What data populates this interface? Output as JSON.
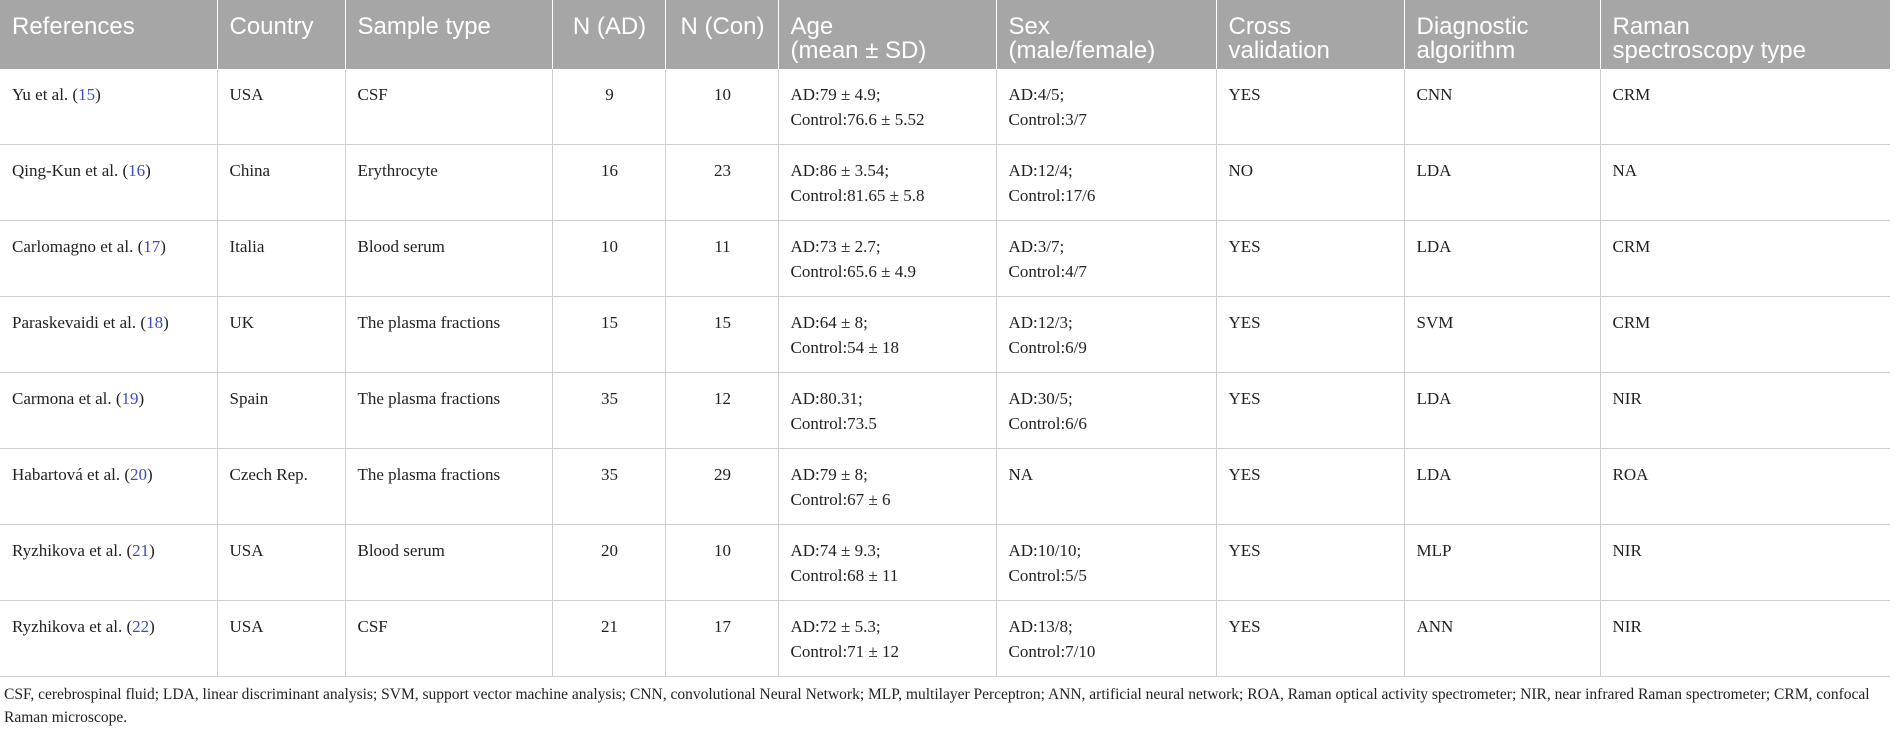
{
  "table": {
    "headers": [
      [
        "References"
      ],
      [
        "Country"
      ],
      [
        "Sample type"
      ],
      [
        "N (AD)"
      ],
      [
        "N (Con)"
      ],
      [
        "Age",
        "(mean ± SD)"
      ],
      [
        "Sex",
        "(male/female)"
      ],
      [
        "Cross",
        "validation"
      ],
      [
        "Diagnostic",
        "algorithm"
      ],
      [
        "Raman",
        "spectroscopy type"
      ]
    ],
    "rows": [
      {
        "ref_author": "Yu et al. (",
        "ref_num": "15",
        "ref_close": ")",
        "country": "USA",
        "sample": "CSF",
        "n_ad": "9",
        "n_con": "10",
        "age_1": "AD:79 ± 4.9;",
        "age_2": "Control:76.6 ± 5.52",
        "sex_1": "AD:4/5;",
        "sex_2": "Control:3/7",
        "cv": "YES",
        "algo": "CNN",
        "raman": "CRM"
      },
      {
        "ref_author": "Qing-Kun et al. (",
        "ref_num": "16",
        "ref_close": ")",
        "country": "China",
        "sample": "Erythrocyte",
        "n_ad": "16",
        "n_con": "23",
        "age_1": "AD:86 ± 3.54;",
        "age_2": "Control:81.65 ± 5.8",
        "sex_1": "AD:12/4;",
        "sex_2": "Control:17/6",
        "cv": "NO",
        "algo": "LDA",
        "raman": "NA"
      },
      {
        "ref_author": "Carlomagno et al. (",
        "ref_num": "17",
        "ref_close": ")",
        "country": "Italia",
        "sample": "Blood serum",
        "n_ad": "10",
        "n_con": "11",
        "age_1": "AD:73 ± 2.7;",
        "age_2": "Control:65.6 ± 4.9",
        "sex_1": "AD:3/7;",
        "sex_2": "Control:4/7",
        "cv": "YES",
        "algo": "LDA",
        "raman": "CRM"
      },
      {
        "ref_author": "Paraskevaidi et al. (",
        "ref_num": "18",
        "ref_close": ")",
        "country": "UK",
        "sample": "The plasma fractions",
        "n_ad": "15",
        "n_con": "15",
        "age_1": "AD:64 ± 8;",
        "age_2": "Control:54 ± 18",
        "sex_1": "AD:12/3;",
        "sex_2": "Control:6/9",
        "cv": "YES",
        "algo": "SVM",
        "raman": "CRM"
      },
      {
        "ref_author": "Carmona et al. (",
        "ref_num": "19",
        "ref_close": ")",
        "country": "Spain",
        "sample": "The plasma fractions",
        "n_ad": "35",
        "n_con": "12",
        "age_1": "AD:80.31;",
        "age_2": "Control:73.5",
        "sex_1": "AD:30/5;",
        "sex_2": "Control:6/6",
        "cv": "YES",
        "algo": "LDA",
        "raman": "NIR"
      },
      {
        "ref_author": "Habartová et al. (",
        "ref_num": "20",
        "ref_close": ")",
        "country": "Czech Rep.",
        "sample": "The plasma fractions",
        "n_ad": "35",
        "n_con": "29",
        "age_1": "AD:79 ± 8;",
        "age_2": "Control:67 ± 6",
        "sex_1": "NA",
        "sex_2": "",
        "cv": "YES",
        "algo": "LDA",
        "raman": "ROA"
      },
      {
        "ref_author": "Ryzhikova et al. (",
        "ref_num": "21",
        "ref_close": ")",
        "country": "USA",
        "sample": "Blood serum",
        "n_ad": "20",
        "n_con": "10",
        "age_1": "AD:74 ± 9.3;",
        "age_2": "Control:68 ± 11",
        "sex_1": "AD:10/10;",
        "sex_2": "Control:5/5",
        "cv": "YES",
        "algo": "MLP",
        "raman": "NIR"
      },
      {
        "ref_author": "Ryzhikova et al. (",
        "ref_num": "22",
        "ref_close": ")",
        "country": "USA",
        "sample": "CSF",
        "n_ad": "21",
        "n_con": "17",
        "age_1": "AD:72 ± 5.3;",
        "age_2": "Control:71 ± 12",
        "sex_1": "AD:13/8;",
        "sex_2": "Control:7/10",
        "cv": "YES",
        "algo": "ANN",
        "raman": "NIR"
      }
    ]
  },
  "footnote": "CSF, cerebrospinal fluid; LDA, linear discriminant analysis; SVM, support vector machine analysis; CNN, convolutional Neural Network; MLP, multilayer Perceptron; ANN, artificial neural network; ROA, Raman optical activity spectrometer; NIR, near infrared Raman spectrometer; CRM, confocal Raman microscope.",
  "colors": {
    "header_bg": "#a6a6a6",
    "header_text": "#ffffff",
    "citation": "#3c4bc0",
    "grid": "#cfcfcf"
  }
}
